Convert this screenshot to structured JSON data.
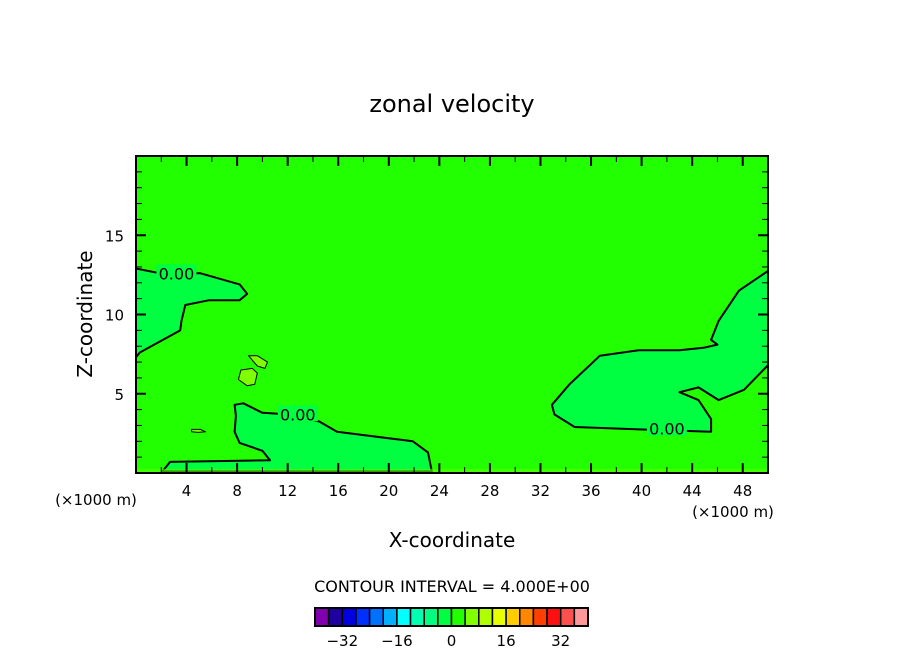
{
  "chart_data": {
    "type": "heatmap",
    "subtype": "filled-contour",
    "title": "zonal velocity",
    "xlabel": "X-coordinate",
    "ylabel": "Z-coordinate",
    "x_unit_label": "(×1000 m)",
    "y_unit_label": "(×1000 m)",
    "xlim": [
      0,
      50
    ],
    "ylim": [
      0,
      20
    ],
    "x_ticks": [
      4,
      8,
      12,
      16,
      20,
      24,
      28,
      32,
      36,
      40,
      44,
      48
    ],
    "y_ticks": [
      5,
      10,
      15
    ],
    "contour_interval_text": "CONTOUR INTERVAL = 4.000E+00",
    "background_bin": [
      0,
      4
    ],
    "regions": [
      {
        "bin": [
          -4,
          0
        ],
        "points": [
          [
            0,
            12.9
          ],
          [
            1.9,
            12.6
          ],
          [
            5.1,
            12.6
          ],
          [
            8.2,
            11.9
          ],
          [
            8.8,
            11.3
          ],
          [
            8.2,
            10.9
          ],
          [
            5.8,
            10.9
          ],
          [
            3.9,
            10.6
          ],
          [
            3.6,
            9.6
          ],
          [
            3.5,
            9
          ],
          [
            0.3,
            7.6
          ],
          [
            0,
            7.3
          ]
        ]
      },
      {
        "bin": [
          -4,
          0
        ],
        "points": [
          [
            7.8,
            4.3
          ],
          [
            8.5,
            4.4
          ],
          [
            10,
            3.8
          ],
          [
            11.1,
            3.75
          ],
          [
            14.5,
            3.25
          ],
          [
            15.9,
            2.6
          ],
          [
            21.9,
            2
          ],
          [
            23.1,
            1.3
          ],
          [
            23.4,
            0.1
          ],
          [
            2.1,
            0.1
          ],
          [
            2.7,
            0.7
          ],
          [
            10.6,
            0.8
          ],
          [
            10,
            1.4
          ],
          [
            8.2,
            1.9
          ],
          [
            7.8,
            2.6
          ],
          [
            7.9,
            3.6
          ]
        ]
      },
      {
        "bin": [
          -4,
          0
        ],
        "points": [
          [
            50,
            12.75
          ],
          [
            47.7,
            11.5
          ],
          [
            46.1,
            9.6
          ],
          [
            45.5,
            8.4
          ],
          [
            46,
            8.1
          ],
          [
            44.9,
            7.9
          ],
          [
            43,
            7.75
          ],
          [
            39.8,
            7.75
          ],
          [
            36.7,
            7.4
          ],
          [
            34.3,
            5.6
          ],
          [
            32.9,
            4.3
          ],
          [
            33.1,
            3.7
          ],
          [
            34.7,
            2.9
          ],
          [
            39.8,
            2.75
          ],
          [
            45.5,
            2.6
          ],
          [
            45.5,
            3.4
          ],
          [
            44.5,
            4.6
          ],
          [
            43,
            5.1
          ],
          [
            44.5,
            5.4
          ],
          [
            46.1,
            4.6
          ],
          [
            48.1,
            5.25
          ],
          [
            50,
            6.8
          ]
        ]
      },
      {
        "bin": [
          4,
          8
        ],
        "points": [
          [
            8.3,
            6.5
          ],
          [
            9.2,
            6.6
          ],
          [
            9.6,
            6.3
          ],
          [
            9.4,
            5.6
          ],
          [
            8.8,
            5.5
          ],
          [
            8.1,
            5.9
          ]
        ]
      },
      {
        "bin": [
          4,
          8
        ],
        "points": [
          [
            8.9,
            7.4
          ],
          [
            9.6,
            7.4
          ],
          [
            10.4,
            7
          ],
          [
            10.2,
            6.6
          ],
          [
            9.6,
            6.75
          ]
        ]
      },
      {
        "bin": [
          4,
          8
        ],
        "points": [
          [
            4.4,
            2.75
          ],
          [
            5.1,
            2.75
          ],
          [
            5.5,
            2.6
          ],
          [
            4.9,
            2.56
          ],
          [
            4.4,
            2.6
          ]
        ]
      }
    ],
    "contour_labels": [
      {
        "text": "0.00",
        "x": 3.2,
        "y": 12.6
      },
      {
        "text": "0.00",
        "x": 12.8,
        "y": 3.7
      },
      {
        "text": "0.00",
        "x": 42,
        "y": 2.8
      }
    ],
    "colorbar": {
      "bounds": [
        -40,
        40
      ],
      "step": 4,
      "colors": [
        "#8000b0",
        "#2000a0",
        "#0000e0",
        "#0030ff",
        "#0070ff",
        "#00b0ff",
        "#00ffff",
        "#00ffb0",
        "#00ff80",
        "#00ff40",
        "#22ff00",
        "#80ff00",
        "#b0ff00",
        "#e8ff00",
        "#ffcc00",
        "#ff8800",
        "#ff4000",
        "#ff1010",
        "#ff5050",
        "#ff9898"
      ],
      "tick_values": [
        -32,
        -16,
        0,
        16,
        32
      ],
      "tick_labels": [
        "−32",
        "−16",
        "0",
        "16",
        "32"
      ]
    }
  }
}
